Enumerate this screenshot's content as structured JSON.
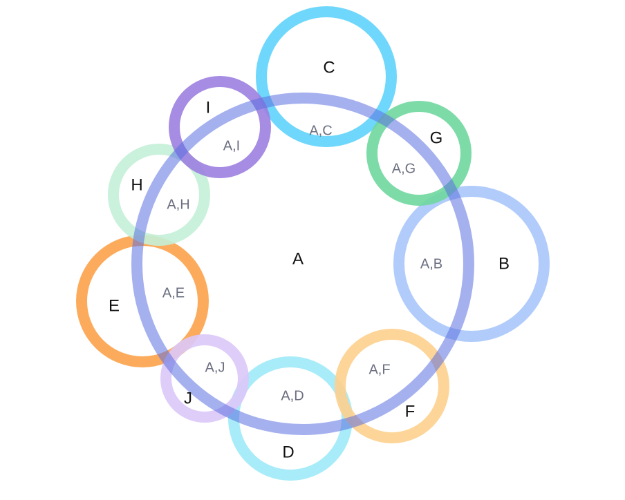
{
  "chart_data": {
    "type": "venn",
    "sets": [
      {
        "id": "A",
        "label": "A",
        "color": "#5b6fe0"
      },
      {
        "id": "B",
        "label": "B",
        "color": "#a9c6fb"
      },
      {
        "id": "C",
        "label": "C",
        "color": "#5fd3fb"
      },
      {
        "id": "D",
        "label": "D",
        "color": "#9eeaf8"
      },
      {
        "id": "E",
        "label": "E",
        "color": "#fca24a"
      },
      {
        "id": "F",
        "label": "F",
        "color": "#fdd08d"
      },
      {
        "id": "G",
        "label": "G",
        "color": "#6fd79e"
      },
      {
        "id": "H",
        "label": "H",
        "color": "#c4efd7"
      },
      {
        "id": "I",
        "label": "I",
        "color": "#9c7fe0"
      },
      {
        "id": "J",
        "label": "J",
        "color": "#dcc8f8"
      }
    ],
    "intersections": [
      {
        "sets": [
          "A",
          "B"
        ],
        "label": "A,B"
      },
      {
        "sets": [
          "A",
          "C"
        ],
        "label": "A,C"
      },
      {
        "sets": [
          "A",
          "D"
        ],
        "label": "A,D"
      },
      {
        "sets": [
          "A",
          "E"
        ],
        "label": "A,E"
      },
      {
        "sets": [
          "A",
          "F"
        ],
        "label": "A,F"
      },
      {
        "sets": [
          "A",
          "G"
        ],
        "label": "A,G"
      },
      {
        "sets": [
          "A",
          "H"
        ],
        "label": "A,H"
      },
      {
        "sets": [
          "A",
          "I"
        ],
        "label": "A,I"
      },
      {
        "sets": [
          "A",
          "J"
        ],
        "label": "A,J"
      }
    ]
  }
}
